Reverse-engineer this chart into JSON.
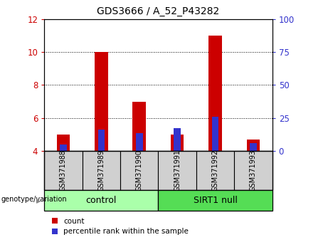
{
  "title": "GDS3666 / A_52_P43282",
  "samples": [
    "GSM371988",
    "GSM371989",
    "GSM371990",
    "GSM371991",
    "GSM371992",
    "GSM371993"
  ],
  "count_values": [
    5.0,
    10.0,
    7.0,
    5.0,
    11.0,
    4.7
  ],
  "percentile_values": [
    4.4,
    5.3,
    5.1,
    5.4,
    6.1,
    4.5
  ],
  "count_color": "#cc0000",
  "percentile_color": "#3333cc",
  "ylim_left": [
    4,
    12
  ],
  "ylim_right": [
    0,
    100
  ],
  "yticks_left": [
    4,
    6,
    8,
    10,
    12
  ],
  "yticks_right": [
    0,
    25,
    50,
    75,
    100
  ],
  "groups": [
    {
      "label": "control",
      "samples": [
        0,
        1,
        2
      ],
      "color": "#aaffaa"
    },
    {
      "label": "SIRT1 null",
      "samples": [
        3,
        4,
        5
      ],
      "color": "#55dd55"
    }
  ],
  "genotype_label": "genotype/variation",
  "legend_count": "count",
  "legend_percentile": "percentile rank within the sample",
  "tick_color_left": "#cc0000",
  "tick_color_right": "#3333cc",
  "bar_width": 0.35,
  "blue_bar_width": 0.18
}
